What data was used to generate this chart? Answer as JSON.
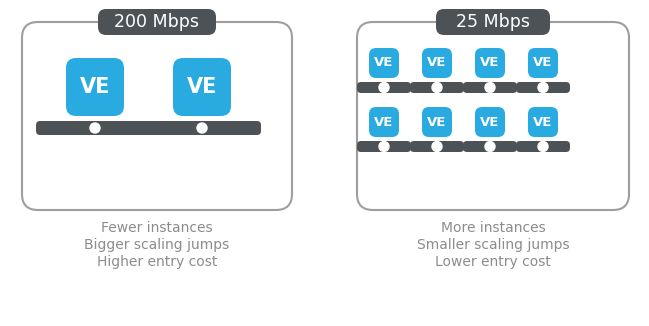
{
  "bg_color": "#ffffff",
  "text_color": "#8c8c8c",
  "border_color": "#9e9e9e",
  "dark_box_color": "#4d5257",
  "ve_color": "#29abe2",
  "ve_text_color": "#ffffff",
  "left_label": "200 Mbps",
  "right_label": "25 Mbps",
  "left_caption": [
    "Fewer instances",
    "Bigger scaling jumps",
    "Higher entry cost"
  ],
  "right_caption": [
    "More instances",
    "Smaller scaling jumps",
    "Lower entry cost"
  ],
  "caption_fontsize": 10.0,
  "label_fontsize": 12.5,
  "ve_fontsize_large": 15,
  "ve_fontsize_small": 9.5
}
